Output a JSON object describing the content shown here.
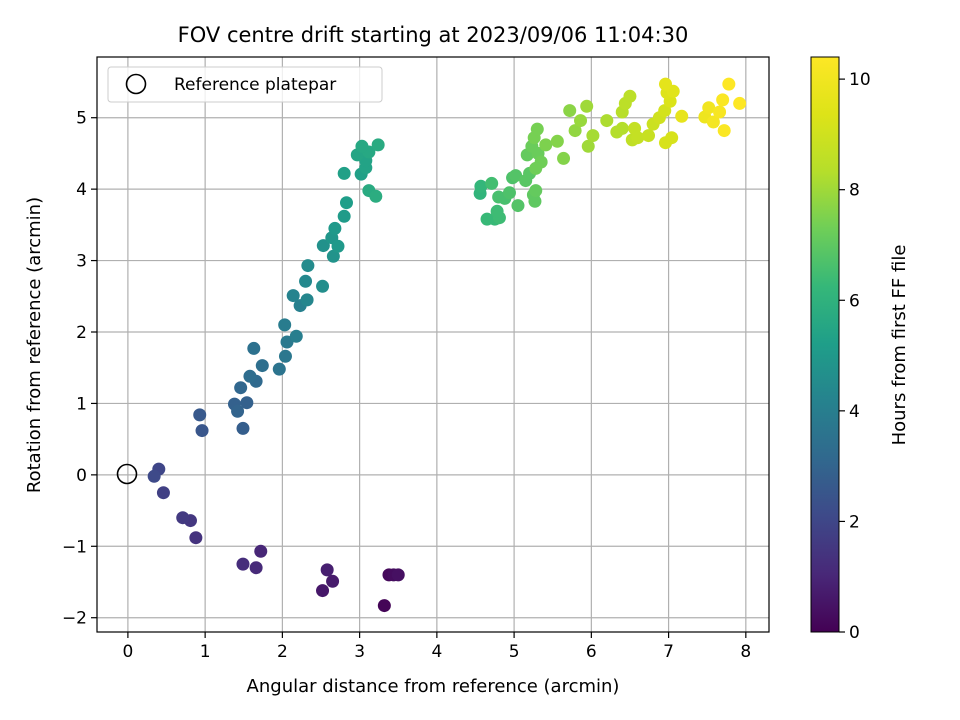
{
  "chart_data": {
    "type": "scatter",
    "title": "FOV centre drift starting at 2023/09/06 11:04:30",
    "xlabel": "Angular distance from reference (arcmin)",
    "ylabel": "Rotation from reference (arcmin)",
    "xlim": [
      -0.4,
      8.3
    ],
    "ylim": [
      -2.2,
      5.85
    ],
    "xticks": [
      0,
      1,
      2,
      3,
      4,
      5,
      6,
      7,
      8
    ],
    "xtick_labels": [
      "0",
      "1",
      "2",
      "3",
      "4",
      "5",
      "6",
      "7",
      "8"
    ],
    "yticks": [
      -2,
      -1,
      0,
      1,
      2,
      3,
      4,
      5
    ],
    "ytick_labels": [
      "−2",
      "−1",
      "0",
      "1",
      "2",
      "3",
      "4",
      "5"
    ],
    "grid": true,
    "legend": {
      "placement": "top-left",
      "entries": [
        {
          "label": "Reference platepar",
          "marker": "open-circle",
          "x": 0,
          "y": 0
        }
      ]
    },
    "colorbar": {
      "label": "Hours from first FF file",
      "colormap": "viridis",
      "range": [
        0,
        10.4
      ],
      "ticks": [
        0,
        2,
        4,
        6,
        8,
        10
      ],
      "tick_labels": [
        "0",
        "2",
        "4",
        "6",
        "8",
        "10"
      ]
    },
    "points": [
      [
        3.32,
        -1.83,
        0.1
      ],
      [
        3.38,
        -1.4,
        0.2
      ],
      [
        3.44,
        -1.4,
        0.3
      ],
      [
        3.5,
        -1.4,
        0.4
      ],
      [
        2.52,
        -1.62,
        0.6
      ],
      [
        2.65,
        -1.49,
        0.7
      ],
      [
        2.58,
        -1.33,
        0.8
      ],
      [
        1.72,
        -1.07,
        1.0
      ],
      [
        1.66,
        -1.3,
        1.1
      ],
      [
        1.49,
        -1.25,
        1.2
      ],
      [
        0.88,
        -0.88,
        1.4
      ],
      [
        0.81,
        -0.64,
        1.5
      ],
      [
        0.71,
        -0.6,
        1.6
      ],
      [
        0.46,
        -0.25,
        1.8
      ],
      [
        0.4,
        0.08,
        2.0
      ],
      [
        0.34,
        -0.02,
        2.1
      ],
      [
        0.96,
        0.62,
        2.5
      ],
      [
        0.93,
        0.84,
        2.6
      ],
      [
        1.49,
        0.65,
        2.8
      ],
      [
        1.54,
        1.01,
        2.9
      ],
      [
        1.38,
        0.99,
        2.9
      ],
      [
        1.42,
        0.89,
        3.0
      ],
      [
        1.46,
        1.22,
        3.1
      ],
      [
        1.66,
        1.31,
        3.2
      ],
      [
        1.58,
        1.38,
        3.3
      ],
      [
        1.74,
        1.53,
        3.4
      ],
      [
        1.63,
        1.77,
        3.5
      ],
      [
        1.96,
        1.48,
        3.6
      ],
      [
        2.04,
        1.66,
        3.7
      ],
      [
        2.06,
        1.86,
        3.8
      ],
      [
        2.03,
        2.1,
        3.9
      ],
      [
        2.18,
        1.94,
        4.0
      ],
      [
        2.23,
        2.37,
        4.1
      ],
      [
        2.14,
        2.51,
        4.2
      ],
      [
        2.32,
        2.45,
        4.3
      ],
      [
        2.3,
        2.71,
        4.4
      ],
      [
        2.33,
        2.93,
        4.5
      ],
      [
        2.52,
        2.64,
        4.6
      ],
      [
        2.53,
        3.21,
        4.7
      ],
      [
        2.66,
        3.06,
        4.8
      ],
      [
        2.64,
        3.32,
        4.9
      ],
      [
        2.72,
        3.2,
        5.0
      ],
      [
        2.68,
        3.45,
        5.0
      ],
      [
        2.8,
        3.62,
        5.1
      ],
      [
        2.83,
        3.81,
        5.2
      ],
      [
        2.8,
        4.22,
        5.3
      ],
      [
        3.02,
        4.21,
        5.3
      ],
      [
        3.08,
        4.3,
        5.4
      ],
      [
        3.08,
        4.4,
        5.4
      ],
      [
        2.97,
        4.48,
        5.5
      ],
      [
        3.05,
        4.55,
        5.5
      ],
      [
        3.12,
        4.52,
        5.6
      ],
      [
        3.03,
        4.6,
        5.6
      ],
      [
        3.24,
        4.62,
        5.7
      ],
      [
        3.12,
        3.98,
        5.7
      ],
      [
        3.21,
        3.9,
        5.8
      ],
      [
        4.56,
        3.94,
        6.1
      ],
      [
        4.57,
        4.04,
        6.2
      ],
      [
        4.65,
        3.58,
        6.3
      ],
      [
        4.75,
        3.58,
        6.3
      ],
      [
        4.81,
        3.6,
        6.4
      ],
      [
        4.78,
        3.69,
        6.4
      ],
      [
        4.71,
        4.08,
        6.5
      ],
      [
        4.8,
        3.89,
        6.6
      ],
      [
        4.88,
        3.87,
        6.6
      ],
      [
        4.94,
        3.95,
        6.7
      ],
      [
        4.98,
        4.16,
        6.7
      ],
      [
        5.05,
        3.77,
        6.8
      ],
      [
        5.02,
        4.19,
        6.8
      ],
      [
        5.15,
        4.12,
        6.9
      ],
      [
        5.2,
        4.22,
        6.9
      ],
      [
        5.27,
        3.83,
        7.0
      ],
      [
        5.25,
        3.92,
        7.0
      ],
      [
        5.28,
        3.98,
        7.1
      ],
      [
        5.17,
        4.48,
        7.1
      ],
      [
        5.23,
        4.6,
        7.2
      ],
      [
        5.31,
        4.5,
        7.2
      ],
      [
        5.35,
        4.38,
        7.3
      ],
      [
        5.28,
        4.29,
        7.3
      ],
      [
        5.26,
        4.72,
        7.4
      ],
      [
        5.3,
        4.84,
        7.4
      ],
      [
        5.41,
        4.62,
        7.5
      ],
      [
        5.56,
        4.67,
        7.6
      ],
      [
        5.64,
        4.43,
        7.6
      ],
      [
        5.72,
        5.1,
        7.7
      ],
      [
        5.79,
        4.82,
        7.8
      ],
      [
        5.86,
        4.96,
        7.9
      ],
      [
        5.94,
        5.16,
        8.0
      ],
      [
        5.96,
        4.6,
        8.0
      ],
      [
        6.02,
        4.75,
        8.1
      ],
      [
        6.2,
        4.96,
        8.2
      ],
      [
        6.33,
        4.8,
        8.3
      ],
      [
        6.4,
        4.85,
        8.3
      ],
      [
        6.4,
        5.08,
        8.4
      ],
      [
        6.44,
        5.2,
        8.5
      ],
      [
        6.5,
        5.3,
        8.5
      ],
      [
        6.53,
        4.69,
        8.6
      ],
      [
        6.56,
        4.85,
        8.7
      ],
      [
        6.6,
        4.72,
        8.7
      ],
      [
        6.74,
        4.75,
        8.8
      ],
      [
        6.8,
        4.91,
        8.9
      ],
      [
        6.88,
        5.0,
        9.0
      ],
      [
        6.95,
        5.1,
        9.1
      ],
      [
        6.96,
        4.65,
        9.2
      ],
      [
        7.04,
        4.72,
        9.2
      ],
      [
        7.02,
        5.23,
        9.3
      ],
      [
        6.98,
        5.35,
        9.4
      ],
      [
        7.06,
        5.37,
        9.5
      ],
      [
        6.96,
        5.47,
        9.6
      ],
      [
        7.17,
        5.02,
        9.7
      ],
      [
        7.47,
        5.01,
        9.9
      ],
      [
        7.52,
        5.14,
        10.0
      ],
      [
        7.58,
        4.94,
        10.1
      ],
      [
        7.66,
        5.08,
        10.2
      ],
      [
        7.7,
        5.25,
        10.3
      ],
      [
        7.72,
        4.82,
        10.3
      ],
      [
        7.78,
        5.47,
        10.4
      ],
      [
        7.92,
        5.2,
        10.4
      ]
    ]
  }
}
